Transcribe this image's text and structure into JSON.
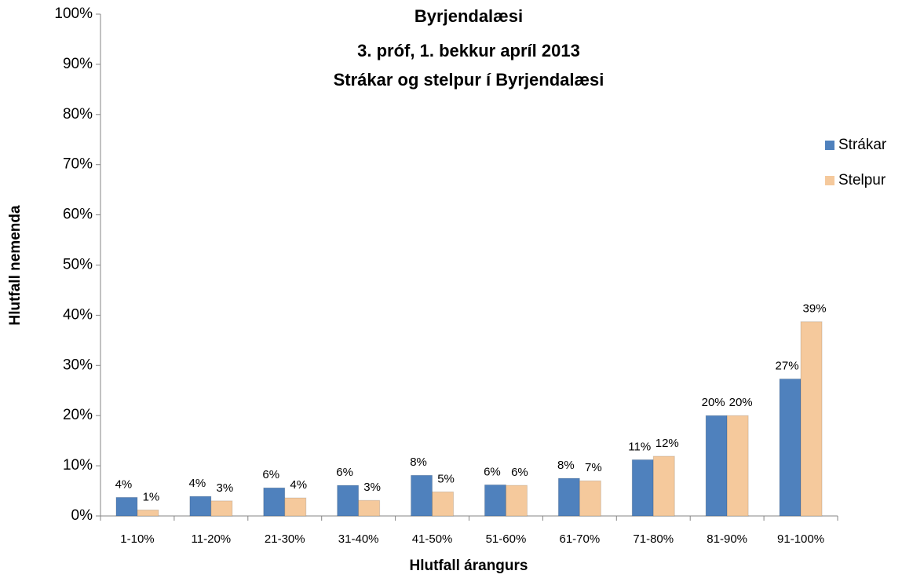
{
  "chart_data": {
    "type": "bar",
    "title": [
      "Byrjendalæsi",
      "3. próf, 1. bekkur apríl 2013",
      "Strákar og stelpur í Byrjendalæsi"
    ],
    "x_label": "Hlutfall árangurs",
    "y_label": "Hlutfall nemenda",
    "categories": [
      "1-10%",
      "11-20%",
      "21-30%",
      "31-40%",
      "41-50%",
      "51-60%",
      "61-70%",
      "71-80%",
      "81-90%",
      "91-100%"
    ],
    "series": [
      {
        "name": "Strákar",
        "color": "#4f81bd",
        "values": [
          3.7,
          3.9,
          5.6,
          6.1,
          8.1,
          6.2,
          7.5,
          11.2,
          20.0,
          27.3
        ],
        "value_labels": [
          "4%",
          "4%",
          "6%",
          "6%",
          "8%",
          "6%",
          "8%",
          "11%",
          "20%",
          "27%"
        ]
      },
      {
        "name": "Stelpur",
        "color": "#f5c99c",
        "values": [
          1.2,
          3.0,
          3.6,
          3.1,
          4.8,
          6.1,
          7.0,
          11.9,
          20.0,
          38.7
        ],
        "value_labels": [
          "1%",
          "3%",
          "4%",
          "3%",
          "5%",
          "6%",
          "7%",
          "12%",
          "20%",
          "39%"
        ]
      }
    ],
    "ylim": [
      0,
      100
    ],
    "yticks": [
      {
        "value": 0,
        "label": "0%"
      },
      {
        "value": 10,
        "label": "10%"
      },
      {
        "value": 20,
        "label": "20%"
      },
      {
        "value": 30,
        "label": "30%"
      },
      {
        "value": 40,
        "label": "40%"
      },
      {
        "value": 50,
        "label": "50%"
      },
      {
        "value": 60,
        "label": "60%"
      },
      {
        "value": 70,
        "label": "70%"
      },
      {
        "value": 80,
        "label": "80%"
      },
      {
        "value": 90,
        "label": "90%"
      },
      {
        "value": 100,
        "label": "100%"
      }
    ],
    "grid": false,
    "legend": "right"
  }
}
